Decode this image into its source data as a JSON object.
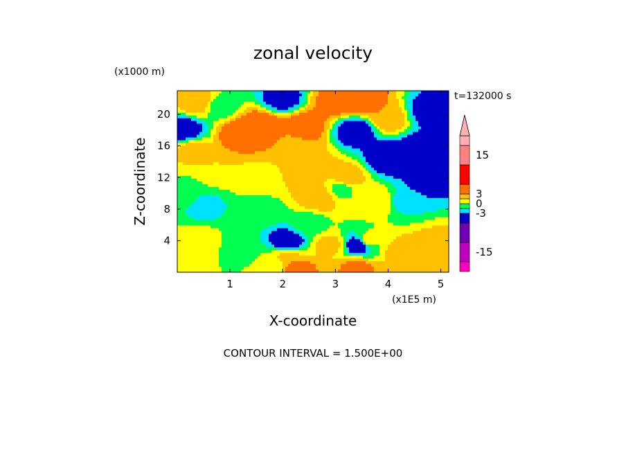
{
  "chart_data": {
    "type": "heatmap",
    "title": "zonal velocity",
    "xlabel": "X-coordinate",
    "ylabel": "Z-coordinate",
    "x_unit": "(x1E5 m)",
    "y_unit": "(x1000 m)",
    "time_label": "t=132000 s",
    "footer": "CONTOUR INTERVAL = 1.500E+00",
    "xlim": [
      0,
      5.15
    ],
    "ylim": [
      0,
      23
    ],
    "x_ticks": [
      "1",
      "2",
      "3",
      "4",
      "5"
    ],
    "y_ticks": [
      "4",
      "8",
      "12",
      "16",
      "20"
    ],
    "contour_interval": 1.5,
    "colorbar": {
      "labels": [
        "15",
        "3",
        "0",
        "-3",
        "-15"
      ],
      "label_values": [
        15,
        3,
        0,
        -3,
        -15
      ],
      "levels": [
        {
          "color": "#ff00c0",
          "from": -21,
          "to": -18
        },
        {
          "color": "#c000c0",
          "from": -18,
          "to": -12
        },
        {
          "color": "#7000b0",
          "from": -12,
          "to": -6
        },
        {
          "color": "#0000c8",
          "from": -6,
          "to": -3
        },
        {
          "color": "#00e0ff",
          "from": -3,
          "to": -1.5
        },
        {
          "color": "#00ff50",
          "from": -1.5,
          "to": 0
        },
        {
          "color": "#ffff00",
          "from": 0,
          "to": 1.5
        },
        {
          "color": "#ffc000",
          "from": 1.5,
          "to": 3
        },
        {
          "color": "#ff7000",
          "from": 3,
          "to": 6
        },
        {
          "color": "#ff0000",
          "from": 6,
          "to": 12
        },
        {
          "color": "#ff8080",
          "from": 12,
          "to": 18
        },
        {
          "color": "#ffb0b0",
          "from": 18,
          "to": 21
        }
      ],
      "extend": "max"
    },
    "field_features": [
      {
        "x": 0.15,
        "z": 18.0,
        "value": -4.5
      },
      {
        "x": 0.4,
        "z": 21.5,
        "value": 3.0
      },
      {
        "x": 0.8,
        "z": 21.0,
        "value": -1.0
      },
      {
        "x": 1.2,
        "z": 17.5,
        "value": 4.5
      },
      {
        "x": 1.6,
        "z": 18.5,
        "value": 5.0
      },
      {
        "x": 2.0,
        "z": 22.0,
        "value": -4.0
      },
      {
        "x": 2.4,
        "z": 18.5,
        "value": 4.5
      },
      {
        "x": 2.2,
        "z": 16.0,
        "value": 2.5
      },
      {
        "x": 3.0,
        "z": 21.5,
        "value": 4.0
      },
      {
        "x": 3.5,
        "z": 21.5,
        "value": 4.5
      },
      {
        "x": 3.4,
        "z": 18.0,
        "value": -5.0
      },
      {
        "x": 3.95,
        "z": 19.5,
        "value": 3.0
      },
      {
        "x": 4.7,
        "z": 15.0,
        "value": -6.0
      },
      {
        "x": 4.0,
        "z": 14.5,
        "value": -5.0
      },
      {
        "x": 4.8,
        "z": 20.5,
        "value": -4.0
      },
      {
        "x": 0.3,
        "z": 15.5,
        "value": 2.0
      },
      {
        "x": 0.8,
        "z": 13.0,
        "value": 1.5
      },
      {
        "x": 1.6,
        "z": 12.0,
        "value": 1.0
      },
      {
        "x": 2.5,
        "z": 13.0,
        "value": 3.0
      },
      {
        "x": 3.2,
        "z": 12.0,
        "value": 2.5
      },
      {
        "x": 2.7,
        "z": 9.5,
        "value": 3.0
      },
      {
        "x": 3.1,
        "z": 10.5,
        "value": -0.5
      },
      {
        "x": 0.15,
        "z": 10.0,
        "value": -0.5
      },
      {
        "x": 0.5,
        "z": 8.5,
        "value": -2.0
      },
      {
        "x": 1.6,
        "z": 7.5,
        "value": -1.0
      },
      {
        "x": 2.5,
        "z": 6.0,
        "value": -0.8
      },
      {
        "x": 3.8,
        "z": 9.0,
        "value": 1.5
      },
      {
        "x": 4.3,
        "z": 9.0,
        "value": -2.0
      },
      {
        "x": 4.7,
        "z": 11.5,
        "value": -4.0
      },
      {
        "x": 0.4,
        "z": 3.5,
        "value": 1.5
      },
      {
        "x": 1.2,
        "z": 3.0,
        "value": -1.0
      },
      {
        "x": 2.1,
        "z": 2.0,
        "value": 2.0
      },
      {
        "x": 2.9,
        "z": 3.5,
        "value": 2.0
      },
      {
        "x": 3.6,
        "z": 4.0,
        "value": 1.0
      },
      {
        "x": 4.3,
        "z": 2.5,
        "value": 2.5
      },
      {
        "x": 4.9,
        "z": 3.5,
        "value": 2.0
      },
      {
        "x": 2.1,
        "z": 3.8,
        "value": -5.0
      },
      {
        "x": 3.45,
        "z": 3.5,
        "value": -5.0
      },
      {
        "x": 2.25,
        "z": 0.5,
        "value": 4.0
      },
      {
        "x": 3.4,
        "z": 0.5,
        "value": 3.5
      },
      {
        "x": 1.8,
        "z": 0.8,
        "value": 0.5
      }
    ]
  }
}
